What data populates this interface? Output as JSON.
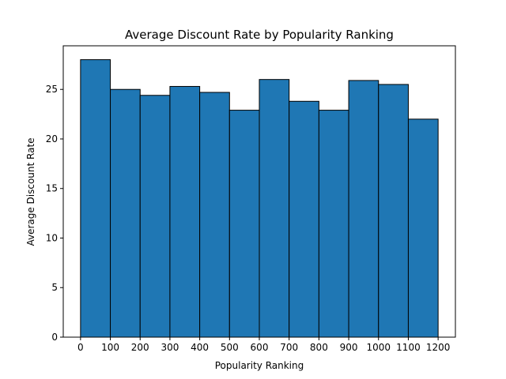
{
  "chart_data": {
    "type": "bar",
    "title": "Average Discount Rate by Popularity Ranking",
    "xlabel": "Popularity Ranking",
    "ylabel": "Average Discount Rate",
    "bin_edges": [
      0,
      100,
      200,
      300,
      400,
      500,
      600,
      700,
      800,
      900,
      1000,
      1100,
      1200
    ],
    "values": [
      28.0,
      25.0,
      24.4,
      25.3,
      24.7,
      22.9,
      26.0,
      23.8,
      22.9,
      25.9,
      25.5,
      22.0
    ],
    "xlim": [
      -58,
      1258
    ],
    "ylim": [
      0,
      29.4
    ],
    "xticks": [
      0,
      100,
      200,
      300,
      400,
      500,
      600,
      700,
      800,
      900,
      1000,
      1100,
      1200
    ],
    "yticks": [
      0,
      5,
      10,
      15,
      20,
      25
    ],
    "grid": false,
    "legend": "none",
    "colors": {
      "bar_fill": "#1f77b4",
      "bar_edge": "#000000",
      "axes": "#000000"
    }
  }
}
